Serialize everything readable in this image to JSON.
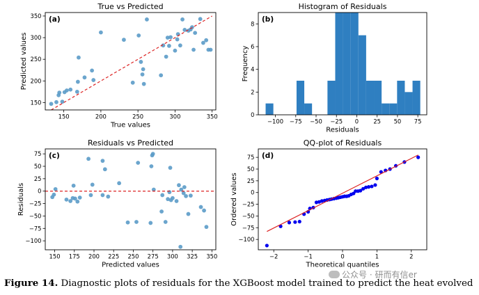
{
  "figure_caption": {
    "label": "Figure 14.",
    "text": " Diagnostic plots of residuals for the XGBoost model trained to predict the heat evolved"
  },
  "watermark": "公众号 · 研而有信er",
  "colors": {
    "points": "#5b9bc8",
    "bars": "#2f7fc1",
    "dashed_line": "#dd2222",
    "qq_points": "#0000ee"
  },
  "chart_data": [
    {
      "id": "a",
      "type": "scatter",
      "panel_label": "(a)",
      "title": "True vs Predicted",
      "xlabel": "True values",
      "ylabel": "Predicted values",
      "xlim": [
        125,
        355
      ],
      "ylim": [
        133,
        358
      ],
      "xticks": [
        150,
        200,
        250,
        300,
        350
      ],
      "yticks": [
        150,
        200,
        250,
        300,
        350
      ],
      "reference_line": {
        "from": [
          133,
          133
        ],
        "to": [
          350,
          350
        ],
        "style": "dashed"
      },
      "points": [
        [
          133,
          147
        ],
        [
          140,
          151
        ],
        [
          143,
          167
        ],
        [
          144,
          173
        ],
        [
          148,
          152
        ],
        [
          151,
          174
        ],
        [
          154,
          178
        ],
        [
          159,
          180
        ],
        [
          168,
          175
        ],
        [
          169,
          198
        ],
        [
          170,
          254
        ],
        [
          178,
          208
        ],
        [
          188,
          224
        ],
        [
          190,
          202
        ],
        [
          200,
          312
        ],
        [
          231,
          295
        ],
        [
          243,
          196
        ],
        [
          251,
          305
        ],
        [
          254,
          244
        ],
        [
          256,
          215
        ],
        [
          257,
          227
        ],
        [
          258,
          193
        ],
        [
          262,
          342
        ],
        [
          281,
          213
        ],
        [
          284,
          282
        ],
        [
          288,
          256
        ],
        [
          290,
          300
        ],
        [
          292,
          281
        ],
        [
          294,
          301
        ],
        [
          300,
          270
        ],
        [
          303,
          296
        ],
        [
          304,
          308
        ],
        [
          307,
          282
        ],
        [
          310,
          342
        ],
        [
          313,
          318
        ],
        [
          318,
          316
        ],
        [
          321,
          319
        ],
        [
          323,
          324
        ],
        [
          325,
          272
        ],
        [
          327,
          311
        ],
        [
          334,
          343
        ],
        [
          338,
          288
        ],
        [
          342,
          294
        ],
        [
          345,
          272
        ],
        [
          348,
          272
        ]
      ]
    },
    {
      "id": "b",
      "type": "bar",
      "panel_label": "(b)",
      "title": "Histogram of Residuals",
      "xlabel": "Residuals",
      "ylabel": "Frequency",
      "xlim": [
        -121,
        86
      ],
      "ylim": [
        0,
        9
      ],
      "xticks": [
        -100,
        -75,
        -50,
        -25,
        0,
        25,
        50,
        75
      ],
      "yticks": [
        0,
        2,
        4,
        6,
        8
      ],
      "bin_width": 9.5,
      "bins": [
        {
          "left": -112.0,
          "count": 1
        },
        {
          "left": -102.5,
          "count": 0
        },
        {
          "left": -93.0,
          "count": 0
        },
        {
          "left": -83.5,
          "count": 0
        },
        {
          "left": -74.0,
          "count": 3
        },
        {
          "left": -64.5,
          "count": 1
        },
        {
          "left": -55.0,
          "count": 0
        },
        {
          "left": -45.5,
          "count": 0
        },
        {
          "left": -36.0,
          "count": 3
        },
        {
          "left": -26.5,
          "count": 9
        },
        {
          "left": -17.0,
          "count": 9
        },
        {
          "left": -7.5,
          "count": 9
        },
        {
          "left": 2.0,
          "count": 7
        },
        {
          "left": 11.5,
          "count": 3
        },
        {
          "left": 21.0,
          "count": 3
        },
        {
          "left": 30.5,
          "count": 1
        },
        {
          "left": 40.0,
          "count": 1
        },
        {
          "left": 49.5,
          "count": 3
        },
        {
          "left": 59.0,
          "count": 2
        },
        {
          "left": 68.5,
          "count": 3
        }
      ]
    },
    {
      "id": "c",
      "type": "scatter",
      "panel_label": "(c)",
      "title": "Residuals vs Predicted",
      "xlabel": "Predicted values",
      "ylabel": "Residuals",
      "xlim": [
        138,
        355
      ],
      "ylim": [
        -118,
        85
      ],
      "xticks": [
        150,
        175,
        200,
        225,
        250,
        275,
        300,
        325,
        350
      ],
      "yticks": [
        -100,
        -75,
        -50,
        -25,
        0,
        25,
        50,
        75
      ],
      "reference_line": {
        "y": 0,
        "style": "dashed"
      },
      "points": [
        [
          147,
          -12
        ],
        [
          149,
          -7
        ],
        [
          151,
          4
        ],
        [
          165,
          -17
        ],
        [
          170,
          -20
        ],
        [
          173,
          -14
        ],
        [
          174,
          11
        ],
        [
          176,
          -15
        ],
        [
          179,
          -21
        ],
        [
          182,
          -13
        ],
        [
          193,
          65
        ],
        [
          196,
          -8
        ],
        [
          198,
          13
        ],
        [
          211,
          -8
        ],
        [
          211,
          61
        ],
        [
          214,
          44
        ],
        [
          218,
          -11
        ],
        [
          232,
          16
        ],
        [
          243,
          -63
        ],
        [
          254,
          -62
        ],
        [
          256,
          57
        ],
        [
          272,
          -64
        ],
        [
          273,
          50
        ],
        [
          274,
          72
        ],
        [
          275,
          75
        ],
        [
          276,
          3
        ],
        [
          286,
          -41
        ],
        [
          287,
          -8
        ],
        [
          291,
          -62
        ],
        [
          294,
          -16
        ],
        [
          296,
          -2
        ],
        [
          297,
          47
        ],
        [
          298,
          -18
        ],
        [
          300,
          -14
        ],
        [
          305,
          -20
        ],
        [
          308,
          12
        ],
        [
          310,
          -112
        ],
        [
          311,
          3
        ],
        [
          314,
          -4
        ],
        [
          315,
          8
        ],
        [
          317,
          -10
        ],
        [
          320,
          -46
        ],
        [
          323,
          -9
        ],
        [
          336,
          -32
        ],
        [
          340,
          -39
        ],
        [
          343,
          -72
        ]
      ]
    },
    {
      "id": "d",
      "type": "scatter",
      "panel_label": "(d)",
      "title": "QQ-plot of Residuals",
      "xlabel": "Theoretical quantiles",
      "ylabel": "Ordered values",
      "xlim": [
        -2.45,
        2.45
      ],
      "ylim": [
        -122,
        93
      ],
      "xticks": [
        -2,
        -1,
        0,
        1,
        2
      ],
      "yticks": [
        -100,
        -75,
        -50,
        -25,
        0,
        25,
        50,
        75
      ],
      "reference_line": {
        "from": [
          -2.2,
          -83
        ],
        "to": [
          2.2,
          80
        ],
        "style": "solid"
      },
      "points": [
        [
          -2.2,
          -113
        ],
        [
          -1.8,
          -72
        ],
        [
          -1.55,
          -64
        ],
        [
          -1.38,
          -63
        ],
        [
          -1.25,
          -62
        ],
        [
          -1.12,
          -46
        ],
        [
          -1.0,
          -41
        ],
        [
          -0.95,
          -34
        ],
        [
          -0.85,
          -32
        ],
        [
          -0.76,
          -21
        ],
        [
          -0.68,
          -20
        ],
        [
          -0.6,
          -18
        ],
        [
          -0.52,
          -17
        ],
        [
          -0.45,
          -16
        ],
        [
          -0.38,
          -15
        ],
        [
          -0.32,
          -14
        ],
        [
          -0.25,
          -13
        ],
        [
          -0.18,
          -12
        ],
        [
          -0.12,
          -11
        ],
        [
          -0.06,
          -10
        ],
        [
          0.0,
          -9
        ],
        [
          0.06,
          -8
        ],
        [
          0.12,
          -8
        ],
        [
          0.18,
          -7
        ],
        [
          0.25,
          -4
        ],
        [
          0.32,
          -2
        ],
        [
          0.38,
          3
        ],
        [
          0.45,
          3
        ],
        [
          0.52,
          4
        ],
        [
          0.6,
          8
        ],
        [
          0.68,
          11
        ],
        [
          0.76,
          12
        ],
        [
          0.85,
          13
        ],
        [
          0.95,
          16
        ],
        [
          1.0,
          30
        ],
        [
          1.12,
          44
        ],
        [
          1.25,
          47
        ],
        [
          1.38,
          50
        ],
        [
          1.55,
          57
        ],
        [
          1.8,
          65
        ],
        [
          2.2,
          75
        ]
      ]
    }
  ]
}
